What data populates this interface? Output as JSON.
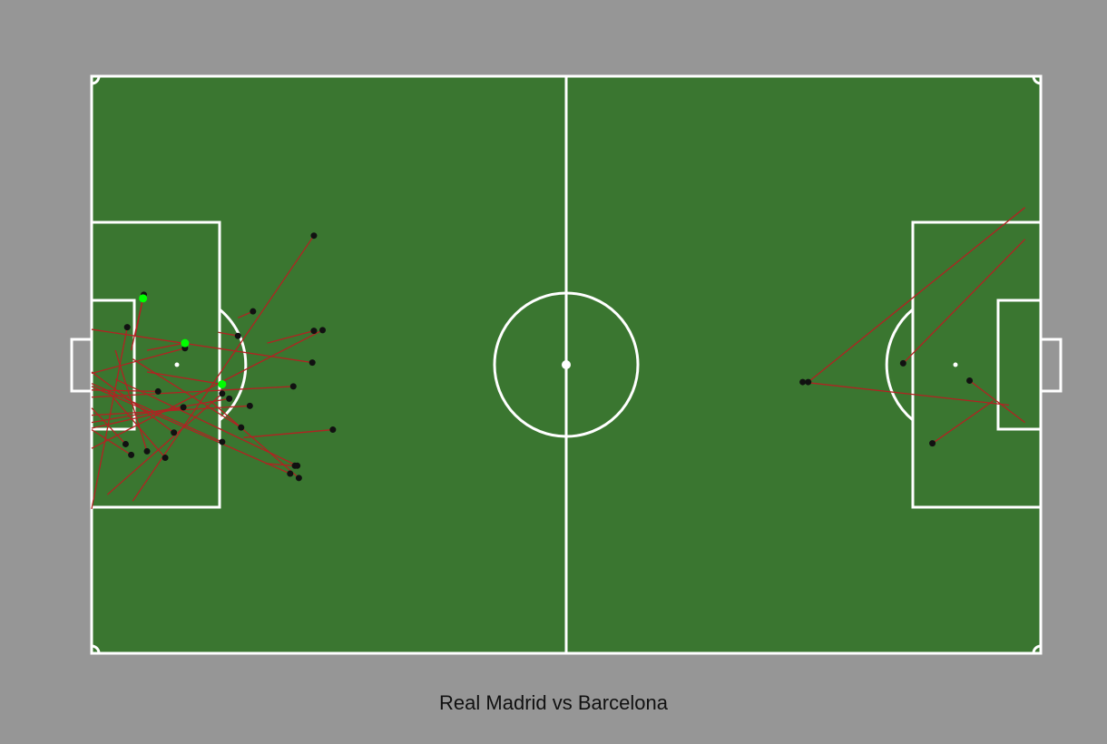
{
  "colors": {
    "background": "#969696",
    "pitch": "#3a7630",
    "lines": "#ffffff",
    "shot_line": "#b22222",
    "shot_marker": "#111111",
    "goal_marker": "#00ff00"
  },
  "caption": "Real Madrid vs Barcelona",
  "chart_data": {
    "type": "scatter",
    "title": "Real Madrid vs Barcelona",
    "xlabel": "",
    "ylabel": "",
    "xlim": [
      0,
      120
    ],
    "ylim": [
      0,
      80
    ],
    "grid": false,
    "legend": "none",
    "shots": [
      {
        "x": 28.1,
        "y": 57.9,
        "end_x": 5.2,
        "end_y": 21.1,
        "goal": false
      },
      {
        "x": 20.4,
        "y": 47.4,
        "end_x": 18.5,
        "end_y": 46.5,
        "goal": false
      },
      {
        "x": 28.1,
        "y": 44.7,
        "end_x": 22.2,
        "end_y": 43.0,
        "goal": false
      },
      {
        "x": 29.2,
        "y": 44.8,
        "end_x": 0.0,
        "end_y": 28.4,
        "goal": false
      },
      {
        "x": 27.9,
        "y": 40.3,
        "end_x": 0.0,
        "end_y": 44.9,
        "goal": false
      },
      {
        "x": 25.5,
        "y": 37.0,
        "end_x": 0.0,
        "end_y": 35.5,
        "goal": false
      },
      {
        "x": 30.5,
        "y": 31.0,
        "end_x": 19.2,
        "end_y": 29.9,
        "goal": false
      },
      {
        "x": 18.9,
        "y": 31.3,
        "end_x": 5.2,
        "end_y": 40.8,
        "goal": false
      },
      {
        "x": 11.6,
        "y": 34.1,
        "end_x": 0.0,
        "end_y": 31.2,
        "goal": false
      },
      {
        "x": 16.5,
        "y": 29.3,
        "end_x": 0.0,
        "end_y": 37.4,
        "goal": false
      },
      {
        "x": 9.3,
        "y": 27.1,
        "end_x": 2.0,
        "end_y": 36.4,
        "goal": false
      },
      {
        "x": 4.5,
        "y": 45.2,
        "end_x": 0.0,
        "end_y": 20.0,
        "goal": false
      },
      {
        "x": 4.3,
        "y": 29.0,
        "end_x": 0.0,
        "end_y": 34.0,
        "goal": false
      },
      {
        "x": 10.4,
        "y": 30.6,
        "end_x": 0.0,
        "end_y": 39.0,
        "goal": false
      },
      {
        "x": 7.0,
        "y": 28.0,
        "end_x": 3.0,
        "end_y": 42.0,
        "goal": false
      },
      {
        "x": 25.7,
        "y": 26.0,
        "end_x": 22.0,
        "end_y": 26.3,
        "goal": false
      },
      {
        "x": 26.2,
        "y": 24.3,
        "end_x": 15.0,
        "end_y": 35.0,
        "goal": false
      },
      {
        "x": 17.4,
        "y": 35.3,
        "end_x": 0.0,
        "end_y": 32.0,
        "goal": false
      },
      {
        "x": 25.1,
        "y": 24.9,
        "end_x": 0.0,
        "end_y": 37.0,
        "goal": false
      },
      {
        "x": 5.0,
        "y": 27.5,
        "end_x": 0.0,
        "end_y": 31.0,
        "goal": false
      },
      {
        "x": 20.0,
        "y": 34.3,
        "end_x": 0.0,
        "end_y": 33.0,
        "goal": false
      },
      {
        "x": 26.0,
        "y": 26.0,
        "end_x": 3.0,
        "end_y": 38.0,
        "goal": false
      },
      {
        "x": 8.4,
        "y": 36.3,
        "end_x": 0.0,
        "end_y": 36.5,
        "goal": false
      },
      {
        "x": 11.8,
        "y": 42.3,
        "end_x": 0.0,
        "end_y": 38.8,
        "goal": false
      },
      {
        "x": 18.5,
        "y": 44.0,
        "end_x": 16.0,
        "end_y": 44.5,
        "goal": false
      },
      {
        "x": 16.5,
        "y": 36.0,
        "end_x": 2.0,
        "end_y": 22.0,
        "goal": false
      },
      {
        "x": 6.6,
        "y": 49.7,
        "end_x": 5.0,
        "end_y": 42.0,
        "goal": false
      },
      {
        "x": 11.8,
        "y": 43.0,
        "end_x": 7.0,
        "end_y": 42.0,
        "goal": true
      },
      {
        "x": 16.5,
        "y": 37.3,
        "end_x": 7.0,
        "end_y": 39.0,
        "goal": true
      },
      {
        "x": 6.5,
        "y": 49.2,
        "end_x": 5.5,
        "end_y": 44.0,
        "goal": true
      },
      {
        "x": 90.6,
        "y": 37.6,
        "end_x": 118.0,
        "end_y": 61.8,
        "goal": false
      },
      {
        "x": 89.9,
        "y": 37.6,
        "end_x": 116.0,
        "end_y": 34.4,
        "goal": false
      },
      {
        "x": 102.6,
        "y": 40.2,
        "end_x": 118.0,
        "end_y": 57.4,
        "goal": false
      },
      {
        "x": 106.3,
        "y": 29.1,
        "end_x": 114.0,
        "end_y": 35.0,
        "goal": false
      },
      {
        "x": 111.0,
        "y": 37.8,
        "end_x": 118.0,
        "end_y": 32.0,
        "goal": false
      }
    ]
  }
}
